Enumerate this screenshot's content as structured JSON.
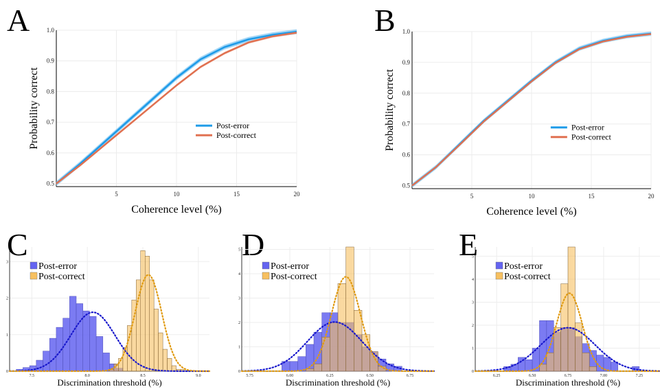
{
  "panel_letters": [
    "A",
    "B",
    "C",
    "D",
    "E"
  ],
  "colors": {
    "post_error_line": "#1e9be8",
    "post_error_band": "#7cc4f2",
    "post_correct_line": "#e07050",
    "hist_blue": "#6464f0",
    "hist_orange": "#f7c060",
    "overlap": "#b28a7a",
    "fit_blue": "#1818cc",
    "fit_orange": "#e09a10"
  },
  "chart_data": [
    {
      "type": "line",
      "panel": "A",
      "xlabel": "Coherence level (%)",
      "ylabel": "Probability correct",
      "xlim": [
        0,
        20
      ],
      "ylim": [
        0.49,
        1.0
      ],
      "xticks": [
        5,
        10,
        15,
        20
      ],
      "yticks": [
        0.5,
        0.6,
        0.7,
        0.8,
        0.9,
        1.0
      ],
      "ytick_labels": [
        "0.5",
        "0.6",
        "0.7",
        "0.8",
        "0.9",
        "1.0"
      ],
      "grid": true,
      "legend": "center-right",
      "series": [
        {
          "name": "Post-error",
          "x": [
            0,
            2,
            4,
            6,
            8,
            10,
            12,
            14,
            16,
            18,
            20
          ],
          "y": [
            0.5,
            0.565,
            0.635,
            0.705,
            0.775,
            0.845,
            0.905,
            0.945,
            0.97,
            0.985,
            0.995
          ],
          "band": 0.008
        },
        {
          "name": "Post-correct",
          "x": [
            0,
            2,
            4,
            6,
            8,
            10,
            12,
            14,
            16,
            18,
            20
          ],
          "y": [
            0.5,
            0.56,
            0.625,
            0.69,
            0.755,
            0.82,
            0.88,
            0.925,
            0.96,
            0.98,
            0.992
          ],
          "band": 0.004
        }
      ]
    },
    {
      "type": "line",
      "panel": "B",
      "xlabel": "Coherence level (%)",
      "ylabel": "Probability correct",
      "xlim": [
        0,
        20
      ],
      "ylim": [
        0.49,
        1.0
      ],
      "xticks": [
        5,
        10,
        15,
        20
      ],
      "yticks": [
        0.5,
        0.6,
        0.7,
        0.8,
        0.9,
        1.0
      ],
      "ytick_labels": [
        "0.5",
        "0.6",
        "0.7",
        "0.8",
        "0.9",
        "1.0"
      ],
      "grid": true,
      "legend": "center-right",
      "series": [
        {
          "name": "Post-error",
          "x": [
            0,
            2,
            4,
            6,
            8,
            10,
            12,
            14,
            16,
            18,
            20
          ],
          "y": [
            0.5,
            0.56,
            0.635,
            0.71,
            0.775,
            0.84,
            0.9,
            0.945,
            0.97,
            0.985,
            0.993
          ],
          "band": 0.007
        },
        {
          "name": "Post-correct",
          "x": [
            0,
            2,
            4,
            6,
            8,
            10,
            12,
            14,
            16,
            18,
            20
          ],
          "y": [
            0.5,
            0.56,
            0.633,
            0.708,
            0.773,
            0.838,
            0.898,
            0.943,
            0.968,
            0.983,
            0.992
          ],
          "band": 0.003
        }
      ]
    },
    {
      "type": "bar",
      "subtype": "histogram",
      "panel": "C",
      "xlabel": "Discrimination threshold (%)",
      "xlim": [
        7.3,
        9.1
      ],
      "ylim": [
        0,
        3.4
      ],
      "xticks": [
        7.5,
        8.0,
        8.5,
        9.0
      ],
      "xtick_labels": [
        "7.5",
        "8.0",
        "8.5",
        "9.0"
      ],
      "yticks": [
        0,
        1,
        2,
        3
      ],
      "grid": true,
      "legend": "top-left",
      "series": [
        {
          "name": "Post-error",
          "bin_start": 7.3,
          "bin_width": 0.06,
          "values": [
            0,
            0.05,
            0.1,
            0.15,
            0.3,
            0.55,
            0.9,
            1.2,
            1.45,
            2.05,
            1.85,
            1.65,
            1.5,
            0.95,
            0.5,
            0.2,
            0.08,
            0,
            0,
            0,
            0
          ],
          "fit_mean": 8.05,
          "fit_sd": 0.2
        },
        {
          "name": "Post-correct",
          "bin_start": 8.2,
          "bin_width": 0.04,
          "values": [
            0.05,
            0.2,
            0.35,
            0.65,
            1.25,
            1.95,
            2.5,
            3.3,
            3.15,
            2.5,
            1.7,
            1.05,
            0.6,
            0.35,
            0.15,
            0.05,
            0.05
          ],
          "fit_mean": 8.55,
          "fit_sd": 0.12
        }
      ]
    },
    {
      "type": "bar",
      "subtype": "histogram",
      "panel": "D",
      "xlabel": "Discrimination threshold (%)",
      "xlim": [
        5.7,
        6.9
      ],
      "ylim": [
        0,
        5.1
      ],
      "xticks": [
        5.75,
        6.0,
        6.25,
        6.5,
        6.75
      ],
      "xtick_labels": [
        "5.75",
        "6.00",
        "6.25",
        "6.50",
        "6.75"
      ],
      "yticks": [
        0,
        1,
        2,
        3,
        4,
        5
      ],
      "grid": true,
      "legend": "top-left",
      "series": [
        {
          "name": "Post-error",
          "bin_start": 5.95,
          "bin_width": 0.05,
          "values": [
            0.4,
            0.4,
            0.6,
            1.1,
            1.6,
            2.4,
            2.4,
            2.0,
            2.0,
            1.5,
            1.0,
            0.8,
            0.5,
            0.3,
            0.2
          ],
          "fit_mean": 6.28,
          "fit_sd": 0.17
        },
        {
          "name": "Post-correct",
          "bin_start": 6.1,
          "bin_width": 0.05,
          "values": [
            0.1,
            0.3,
            1.4,
            2.0,
            3.6,
            5.1,
            2.5,
            1.5,
            0.8,
            0.2
          ],
          "fit_mean": 6.35,
          "fit_sd": 0.09
        }
      ]
    },
    {
      "type": "bar",
      "subtype": "histogram",
      "panel": "E",
      "xlabel": "Discrimination threshold (%)",
      "xlim": [
        6.1,
        7.4
      ],
      "ylim": [
        0,
        5.4
      ],
      "xticks": [
        6.25,
        6.5,
        6.75,
        7.0,
        7.25
      ],
      "xtick_labels": [
        "6.25",
        "6.50",
        "6.75",
        "7.00",
        "7.25"
      ],
      "yticks": [
        0,
        1,
        2,
        3,
        4,
        5
      ],
      "grid": true,
      "legend": "top-left",
      "series": [
        {
          "name": "Post-error",
          "bin_start": 6.3,
          "bin_width": 0.05,
          "values": [
            0.2,
            0.3,
            0.6,
            0.5,
            1.0,
            2.2,
            2.2,
            1.7,
            1.9,
            1.9,
            1.5,
            1.2,
            0.9,
            0.7,
            0.6,
            0.4,
            0,
            0,
            0.2
          ],
          "fit_mean": 6.75,
          "fit_sd": 0.19
        },
        {
          "name": "Post-correct",
          "bin_start": 6.55,
          "bin_width": 0.05,
          "values": [
            0.3,
            0.8,
            1.9,
            3.8,
            5.4,
            2.1,
            0.8,
            0.2
          ],
          "fit_mean": 6.76,
          "fit_sd": 0.09
        }
      ]
    }
  ]
}
